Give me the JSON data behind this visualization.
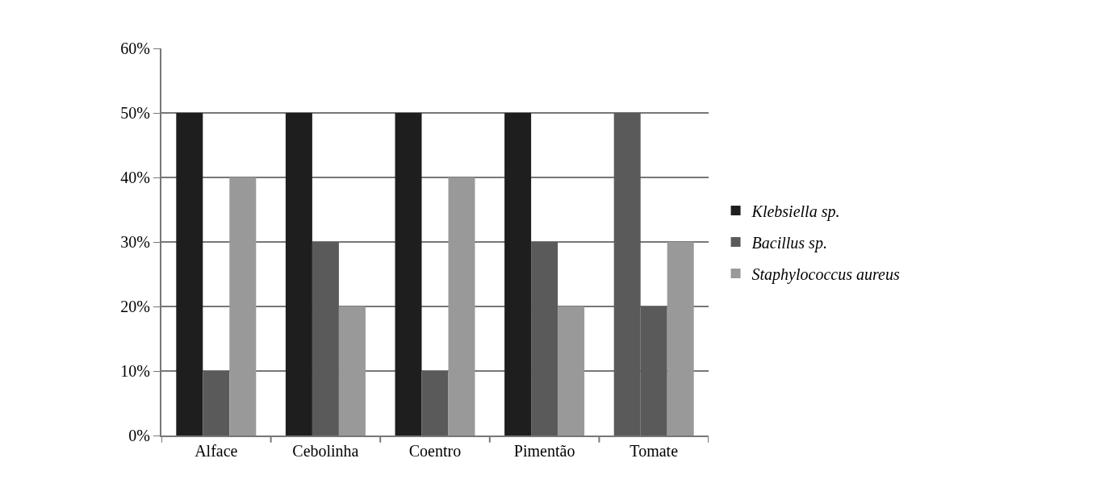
{
  "chart_data": {
    "type": "bar",
    "categories": [
      "Alface",
      "Cebolinha",
      "Coentro",
      "Pimentão",
      "Tomate"
    ],
    "series": [
      {
        "name": "Klebsiella sp.",
        "color": "#1e1e1e",
        "colors": [
          null,
          null,
          null,
          null,
          "#5a5a5a"
        ],
        "values": [
          50,
          50,
          50,
          50,
          50
        ]
      },
      {
        "name": "Bacillus sp.",
        "color": "#5a5a5a",
        "values": [
          10,
          30,
          10,
          30,
          20
        ]
      },
      {
        "name": "Staphylococcus aureus",
        "color": "#999999",
        "values": [
          40,
          20,
          40,
          20,
          30
        ]
      }
    ],
    "ylim": [
      0,
      60
    ],
    "yticks": [
      {
        "value": 0,
        "label": "0%"
      },
      {
        "value": 10,
        "label": "10%"
      },
      {
        "value": 20,
        "label": "20%"
      },
      {
        "value": 30,
        "label": "30%"
      },
      {
        "value": 40,
        "label": "40%"
      },
      {
        "value": 50,
        "label": "50%"
      },
      {
        "value": 60,
        "label": "60%"
      }
    ],
    "grid": "y",
    "legend": "right"
  }
}
